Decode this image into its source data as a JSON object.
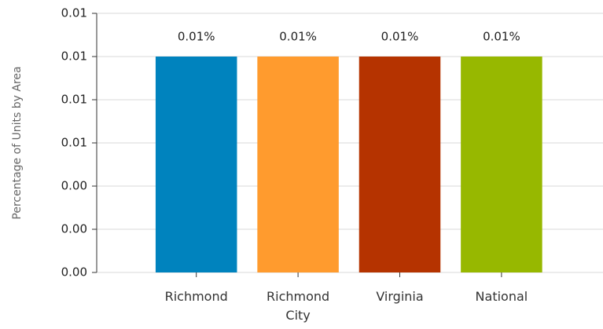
{
  "chart_data": {
    "type": "bar",
    "y_label": "Percentage of Units by Area",
    "categories": [
      "Richmond",
      "Richmond City",
      "Virginia",
      "National"
    ],
    "values": [
      0.01,
      0.01,
      0.01,
      0.01
    ],
    "value_labels": [
      "0.01%",
      "0.01%",
      "0.01%",
      "0.01%"
    ],
    "colors": [
      "#0083be",
      "#ff9b2e",
      "#b53300",
      "#97b800"
    ],
    "ylim": [
      0,
      0.012
    ],
    "yticks": [
      {
        "value": 0,
        "label": "0.00"
      },
      {
        "value": 0.002,
        "label": "0.00"
      },
      {
        "value": 0.004,
        "label": "0.00"
      },
      {
        "value": 0.006,
        "label": "0.01"
      },
      {
        "value": 0.008,
        "label": "0.01"
      },
      {
        "value": 0.01,
        "label": "0.01"
      },
      {
        "value": 0.012,
        "label": "0.01"
      }
    ],
    "grid": true
  }
}
